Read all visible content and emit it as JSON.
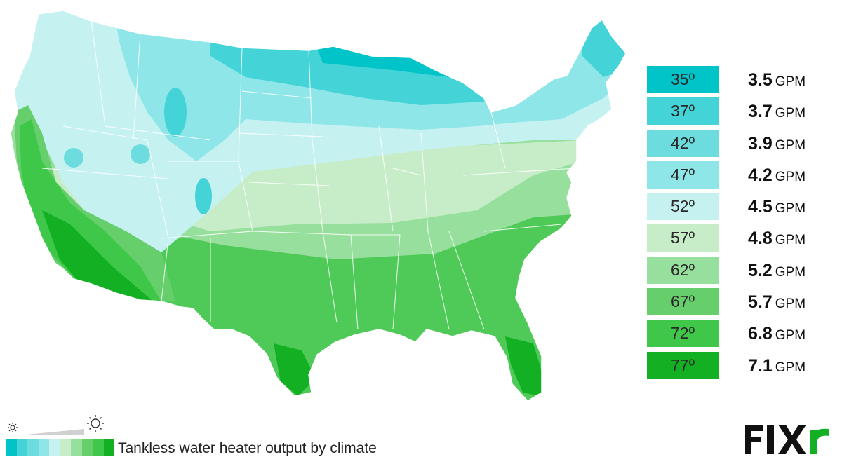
{
  "caption": "Tankless water heater output by climate",
  "logo_text": "FIXR",
  "legend": [
    {
      "temp": "35º",
      "gpm": "3.5",
      "unit": "GPM",
      "color": "#00c4c8"
    },
    {
      "temp": "37º",
      "gpm": "3.7",
      "unit": "GPM",
      "color": "#44d4d8"
    },
    {
      "temp": "42º",
      "gpm": "3.9",
      "unit": "GPM",
      "color": "#6cdcdf"
    },
    {
      "temp": "47º",
      "gpm": "4.2",
      "unit": "GPM",
      "color": "#8ee6e8"
    },
    {
      "temp": "52º",
      "gpm": "4.5",
      "unit": "GPM",
      "color": "#c6f1f1"
    },
    {
      "temp": "57º",
      "gpm": "4.8",
      "unit": "GPM",
      "color": "#c7edc8"
    },
    {
      "temp": "62º",
      "gpm": "5.2",
      "unit": "GPM",
      "color": "#97df9c"
    },
    {
      "temp": "67º",
      "gpm": "5.7",
      "unit": "GPM",
      "color": "#66cf6c"
    },
    {
      "temp": "72º",
      "gpm": "6.8",
      "unit": "GPM",
      "color": "#3ec748"
    },
    {
      "temp": "77º",
      "gpm": "7.1",
      "unit": "GPM",
      "color": "#12b022"
    }
  ],
  "scale_icons": {
    "low": "small-sun-icon",
    "high": "large-sun-icon"
  }
}
